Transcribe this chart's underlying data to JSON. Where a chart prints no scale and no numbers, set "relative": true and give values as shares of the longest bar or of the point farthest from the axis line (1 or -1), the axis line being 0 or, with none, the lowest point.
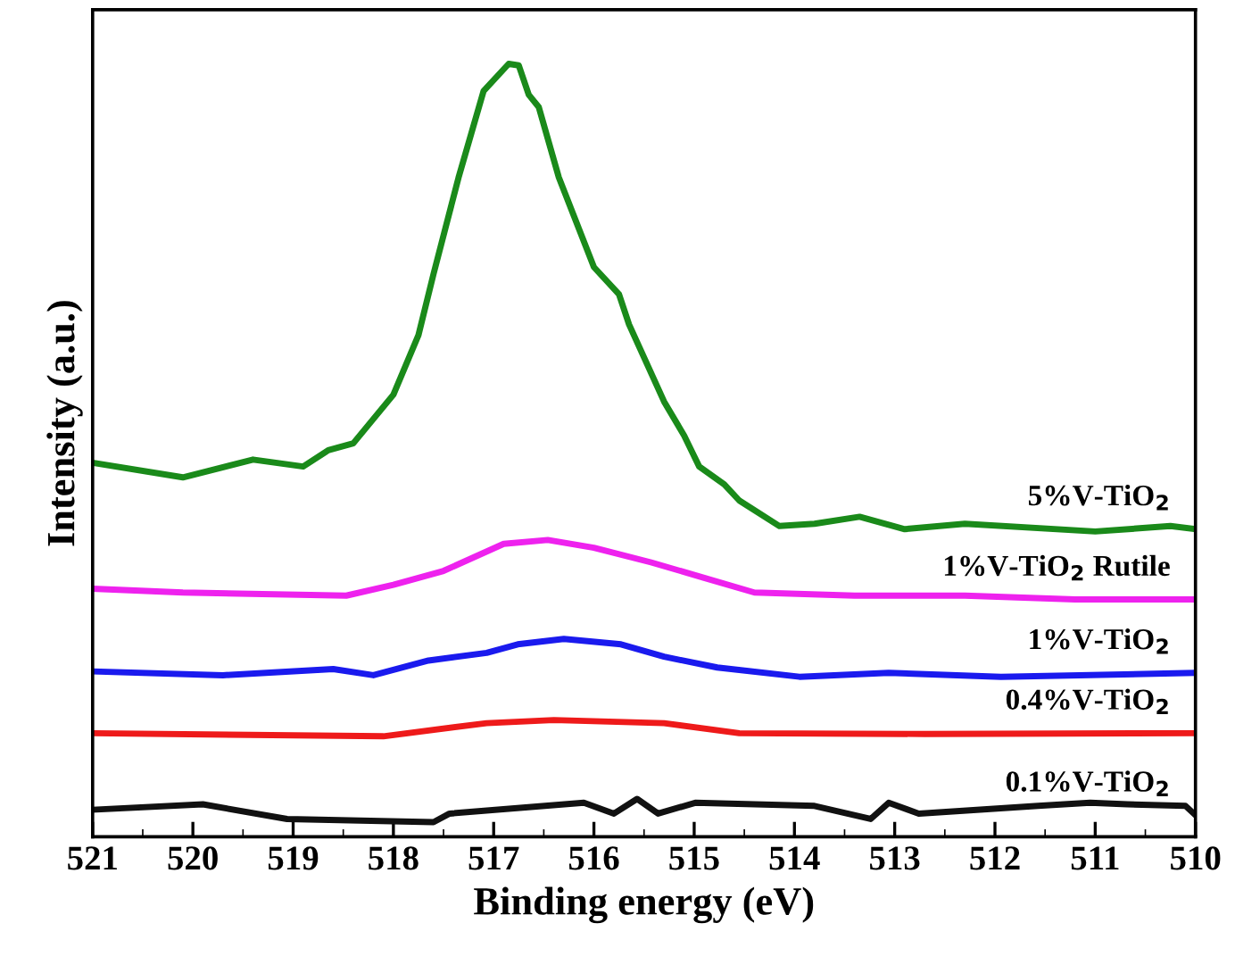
{
  "chart_data": {
    "type": "line",
    "relative": true,
    "xlabel": "Binding energy (eV)",
    "ylabel": "Intensity (a.u.)",
    "xlim": [
      521,
      510
    ],
    "xticks": [
      521,
      520,
      519,
      518,
      517,
      516,
      515,
      514,
      513,
      512,
      511,
      510
    ],
    "grid": false,
    "legend": false,
    "marker": "none",
    "line_style": "solid",
    "tick_labels": "x",
    "series": [
      {
        "name": "5%V-TiO$_{2}$",
        "color": "#1a8a1a",
        "x": [
          521,
          520.1,
          519.4,
          518.9,
          518.65,
          518.4,
          518.0,
          517.75,
          517.6,
          517.35,
          517.1,
          516.85,
          516.75,
          516.65,
          516.55,
          516.35,
          516.0,
          515.75,
          515.65,
          515.3,
          515.1,
          514.95,
          514.7,
          514.55,
          514.15,
          513.8,
          513.35,
          512.9,
          512.3,
          511.0,
          510.25,
          510.0
        ],
        "values": [
          0.484,
          0.465,
          0.488,
          0.479,
          0.5,
          0.509,
          0.572,
          0.649,
          0.728,
          0.853,
          0.965,
          1.0,
          0.998,
          0.96,
          0.944,
          0.853,
          0.737,
          0.702,
          0.663,
          0.563,
          0.519,
          0.479,
          0.456,
          0.435,
          0.402,
          0.405,
          0.414,
          0.398,
          0.405,
          0.395,
          0.402,
          0.398
        ]
      },
      {
        "name": "1%V-TiO$_{2}$ Rutile",
        "color": "#ee22ee",
        "x": [
          521,
          520.1,
          518.47,
          518.0,
          517.5,
          516.9,
          516.46,
          516.0,
          515.43,
          514.9,
          514.4,
          513.4,
          512.3,
          511.2,
          510.0
        ],
        "values": [
          0.321,
          0.316,
          0.312,
          0.326,
          0.344,
          0.379,
          0.384,
          0.374,
          0.355,
          0.335,
          0.316,
          0.312,
          0.312,
          0.307,
          0.307
        ]
      },
      {
        "name": "1%V-TiO$_{2}$",
        "color": "#1a1aee",
        "x": [
          521,
          519.7,
          518.6,
          518.2,
          517.65,
          517.07,
          516.76,
          516.3,
          515.73,
          515.3,
          514.77,
          513.95,
          513.06,
          511.94,
          510.0
        ],
        "values": [
          0.214,
          0.209,
          0.217,
          0.209,
          0.228,
          0.238,
          0.249,
          0.256,
          0.249,
          0.233,
          0.219,
          0.207,
          0.212,
          0.207,
          0.212
        ]
      },
      {
        "name": "0.4%V-TiO$_{2}$",
        "color": "#ee1a1a",
        "x": [
          521,
          518.1,
          517.07,
          516.4,
          515.3,
          514.55,
          512.7,
          510.0
        ],
        "values": [
          0.134,
          0.13,
          0.147,
          0.151,
          0.147,
          0.134,
          0.133,
          0.134
        ]
      },
      {
        "name": "0.1%V-TiO$_{2}$",
        "color": "#111111",
        "x": [
          521,
          519.9,
          519.06,
          517.6,
          517.44,
          516.1,
          515.8,
          515.57,
          515.36,
          514.99,
          513.8,
          513.24,
          513.06,
          512.76,
          511.57,
          511.05,
          510.68,
          510.1,
          510.0
        ],
        "values": [
          0.035,
          0.042,
          0.023,
          0.019,
          0.03,
          0.044,
          0.03,
          0.049,
          0.03,
          0.044,
          0.04,
          0.023,
          0.044,
          0.03,
          0.04,
          0.044,
          0.042,
          0.04,
          0.028
        ]
      }
    ]
  }
}
